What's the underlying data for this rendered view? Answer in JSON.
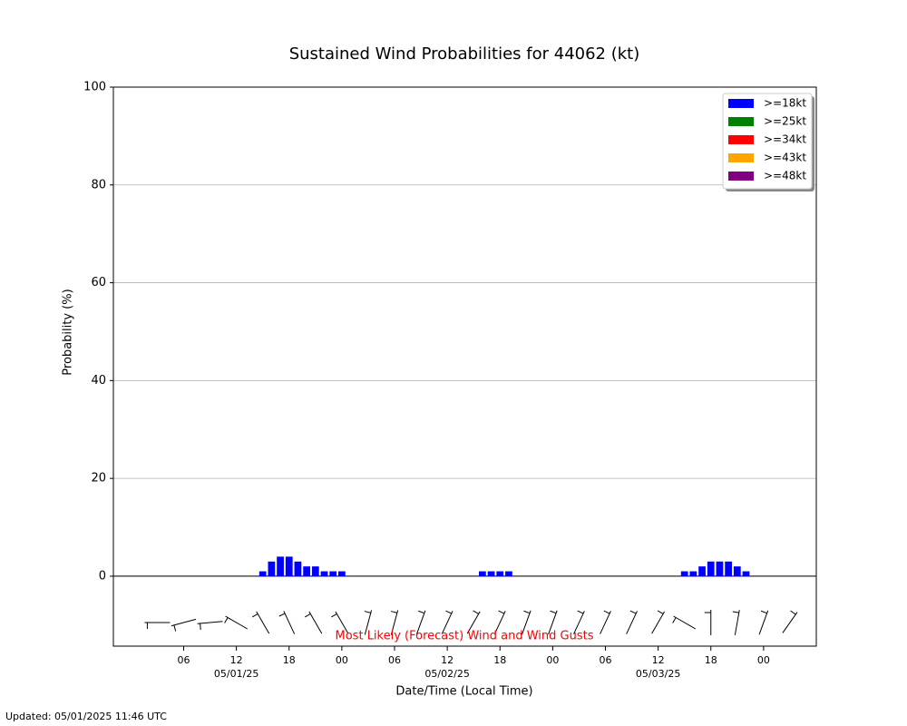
{
  "chart_data": {
    "type": "bar",
    "title": "Sustained Wind Probabilities for 44062 (kt)",
    "y_label": "Probability (%)",
    "x_label": "Date/Time (Local Time)",
    "annotation": "Most Likely (Forecast) Wind and Wind Gusts",
    "updated": "Updated: 05/01/2025 11:46 UTC",
    "x": [
      "2025-05-01T15:00",
      "2025-05-01T16:00",
      "2025-05-01T17:00",
      "2025-05-01T18:00",
      "2025-05-01T19:00",
      "2025-05-01T20:00",
      "2025-05-01T21:00",
      "2025-05-01T22:00",
      "2025-05-01T23:00",
      "2025-05-02T00:00",
      "2025-05-02T16:00",
      "2025-05-02T17:00",
      "2025-05-02T18:00",
      "2025-05-02T19:00",
      "2025-05-03T15:00",
      "2025-05-03T16:00",
      "2025-05-03T17:00",
      "2025-05-03T18:00",
      "2025-05-03T19:00",
      "2025-05-03T20:00",
      "2025-05-03T21:00",
      "2025-05-03T22:00"
    ],
    "series": [
      {
        "name": ">=18kt",
        "color": "#0000ff",
        "values": [
          1,
          3,
          4,
          4,
          3,
          2,
          2,
          1,
          1,
          1,
          1,
          1,
          1,
          1,
          1,
          1,
          2,
          3,
          3,
          3,
          2,
          1
        ]
      },
      {
        "name": ">=25kt",
        "color": "#008000",
        "values": [
          0,
          0,
          0,
          0,
          0,
          0,
          0,
          0,
          0,
          0,
          0,
          0,
          0,
          0,
          0,
          0,
          0,
          0,
          0,
          0,
          0,
          0
        ]
      },
      {
        "name": ">=34kt",
        "color": "#ff0000",
        "values": [
          0,
          0,
          0,
          0,
          0,
          0,
          0,
          0,
          0,
          0,
          0,
          0,
          0,
          0,
          0,
          0,
          0,
          0,
          0,
          0,
          0,
          0
        ]
      },
      {
        "name": ">=43kt",
        "color": "#ffa500",
        "values": [
          0,
          0,
          0,
          0,
          0,
          0,
          0,
          0,
          0,
          0,
          0,
          0,
          0,
          0,
          0,
          0,
          0,
          0,
          0,
          0,
          0,
          0
        ]
      },
      {
        "name": ">=48kt",
        "color": "#800080",
        "values": [
          0,
          0,
          0,
          0,
          0,
          0,
          0,
          0,
          0,
          0,
          0,
          0,
          0,
          0,
          0,
          0,
          0,
          0,
          0,
          0,
          0,
          0
        ]
      }
    ],
    "xlim": [
      "2025-04-30T22:00",
      "2025-05-04T06:00"
    ],
    "ylim": [
      -14.3,
      100
    ],
    "yticks": [
      0,
      20,
      40,
      60,
      80,
      100
    ],
    "xticks": [
      {
        "value": "2025-05-01T06:00",
        "label": "06"
      },
      {
        "value": "2025-05-01T12:00",
        "label": "12"
      },
      {
        "value": "2025-05-01T18:00",
        "label": "18"
      },
      {
        "value": "2025-05-02T00:00",
        "label": "00"
      },
      {
        "value": "2025-05-02T06:00",
        "label": "06"
      },
      {
        "value": "2025-05-02T12:00",
        "label": "12"
      },
      {
        "value": "2025-05-02T18:00",
        "label": "18"
      },
      {
        "value": "2025-05-03T00:00",
        "label": "00"
      },
      {
        "value": "2025-05-03T06:00",
        "label": "06"
      },
      {
        "value": "2025-05-03T12:00",
        "label": "12"
      },
      {
        "value": "2025-05-03T18:00",
        "label": "18"
      },
      {
        "value": "2025-05-04T00:00",
        "label": "00"
      }
    ],
    "xdate_ticks": [
      {
        "value": "2025-05-01T12:00",
        "label": "05/01/25"
      },
      {
        "value": "2025-05-02T12:00",
        "label": "05/02/25"
      },
      {
        "value": "2025-05-03T12:00",
        "label": "05/03/25"
      }
    ],
    "grid": true,
    "legend": "upper right",
    "wind": {
      "x": [
        "2025-05-01T03:00",
        "2025-05-01T06:00",
        "2025-05-01T09:00",
        "2025-05-01T12:00",
        "2025-05-01T15:00",
        "2025-05-01T18:00",
        "2025-05-01T21:00",
        "2025-05-02T00:00",
        "2025-05-02T03:00",
        "2025-05-02T06:00",
        "2025-05-02T09:00",
        "2025-05-02T12:00",
        "2025-05-02T15:00",
        "2025-05-02T18:00",
        "2025-05-02T21:00",
        "2025-05-03T00:00",
        "2025-05-03T03:00",
        "2025-05-03T06:00",
        "2025-05-03T09:00",
        "2025-05-03T12:00",
        "2025-05-03T15:00",
        "2025-05-03T18:00",
        "2025-05-03T21:00",
        "2025-05-04T00:00",
        "2025-05-04T03:00"
      ],
      "direction": [
        270,
        255,
        265,
        300,
        330,
        335,
        330,
        330,
        15,
        15,
        20,
        25,
        30,
        25,
        20,
        20,
        25,
        25,
        25,
        30,
        300,
        0,
        10,
        20,
        35
      ]
    }
  }
}
